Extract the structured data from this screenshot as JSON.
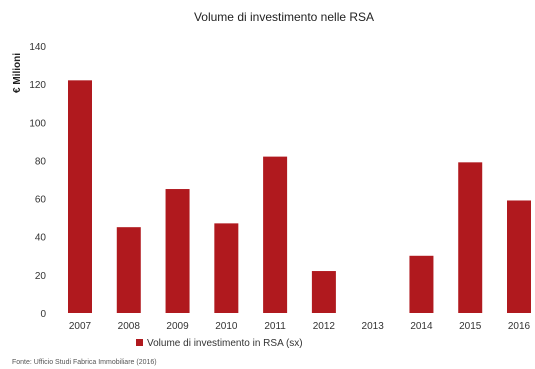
{
  "chart_data": {
    "type": "bar",
    "title": "Volume di investimento nelle RSA",
    "xlabel": "",
    "ylabel": "€ Milioni",
    "categories": [
      "2007",
      "2008",
      "2009",
      "2010",
      "2011",
      "2012",
      "2013",
      "2014",
      "2015",
      "2016"
    ],
    "series": [
      {
        "name": "Volume di investimento in RSA (sx)",
        "values": [
          122,
          45,
          65,
          47,
          82,
          22,
          0,
          30,
          79,
          59
        ],
        "color": "#b0191e"
      }
    ],
    "ylim": [
      0,
      140
    ],
    "yticks": [
      0,
      20,
      40,
      60,
      80,
      100,
      120,
      140
    ],
    "grid": false,
    "legend": "bottom-center"
  },
  "source": "Fonte: Ufficio Studi Fabrica Immobiliare (2016)"
}
